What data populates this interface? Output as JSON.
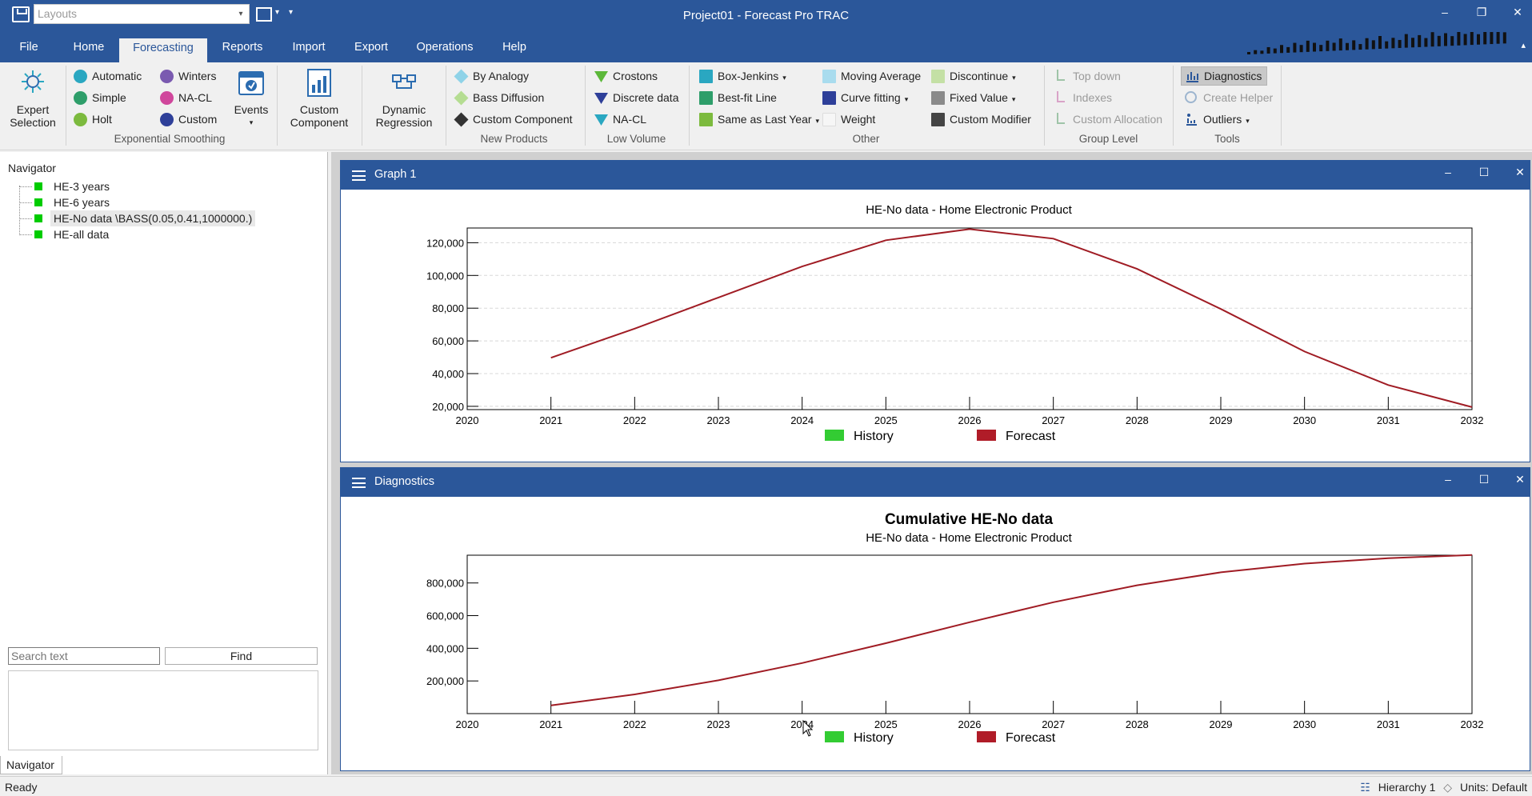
{
  "window": {
    "title": "Project01 - Forecast Pro TRAC",
    "layouts_placeholder": "Layouts"
  },
  "tabs": [
    "File",
    "Home",
    "Forecasting",
    "Reports",
    "Import",
    "Export",
    "Operations",
    "Help"
  ],
  "active_tab": "Forecasting",
  "ribbon": {
    "expert_selection": "Expert Selection",
    "exp_smoothing": {
      "label": "Exponential Smoothing",
      "items": [
        "Automatic",
        "Simple",
        "Holt",
        "Winters",
        "NA-CL",
        "Custom"
      ],
      "colors": [
        "#2aa7c1",
        "#2e9e6a",
        "#7cba3e",
        "#7a5ab0",
        "#d0479c",
        "#2e3f99"
      ]
    },
    "events": "Events",
    "custom_component": "Custom Component",
    "dynamic_regression": "Dynamic Regression",
    "new_products": {
      "label": "New Products",
      "items": [
        "By Analogy",
        "Bass Diffusion",
        "Custom Component"
      ]
    },
    "low_volume": {
      "label": "Low Volume",
      "items": [
        "Crostons",
        "Discrete data",
        "NA-CL"
      ]
    },
    "other": {
      "label": "Other",
      "col1": [
        "Box-Jenkins",
        "Best-fit Line",
        "Same as Last Year"
      ],
      "col2": [
        "Moving Average",
        "Curve fitting",
        "Weight"
      ],
      "col3": [
        "Discontinue",
        "Fixed Value",
        "Custom Modifier"
      ]
    },
    "group_level": {
      "label": "Group Level",
      "items": [
        "Top down",
        "Indexes",
        "Custom Allocation"
      ]
    },
    "tools": {
      "label": "Tools",
      "items": [
        "Diagnostics",
        "Create Helper",
        "Outliers"
      ]
    }
  },
  "navigator": {
    "title": "Navigator",
    "items": [
      "HE-3 years",
      "HE-6 years",
      "HE-No data \\BASS(0.05,0.41,1000000.)",
      "HE-all data"
    ],
    "search_placeholder": "Search text",
    "find_label": "Find",
    "tab_label": "Navigator"
  },
  "graph1": {
    "pane_title": "Graph 1",
    "legend": [
      "History",
      "Forecast"
    ]
  },
  "diagnostics": {
    "pane_title": "Diagnostics",
    "legend": [
      "History",
      "Forecast"
    ]
  },
  "chart_data": [
    {
      "type": "line",
      "title": "HE-No data - Home Electronic Product",
      "x": [
        2021,
        2022,
        2023,
        2024,
        2025,
        2026,
        2027,
        2028,
        2029,
        2030,
        2031,
        2032
      ],
      "x_ticks": [
        "2020",
        "2021",
        "2022",
        "2023",
        "2024",
        "2025",
        "2026",
        "2027",
        "2028",
        "2029",
        "2030",
        "2031",
        "2032"
      ],
      "y_ticks": [
        "20,000",
        "40,000",
        "60,000",
        "80,000",
        "100,000",
        "120,000"
      ],
      "xlim": [
        2020,
        2032
      ],
      "ylim": [
        18000,
        129000
      ],
      "grid": true,
      "legend_position": "bottom-center",
      "series": [
        {
          "name": "Forecast",
          "color": "#a01c24",
          "values": [
            49700,
            67500,
            86500,
            105500,
            121500,
            128300,
            122500,
            104000,
            79500,
            53500,
            33000,
            19500
          ]
        }
      ]
    },
    {
      "type": "line",
      "title": "Cumulative HE-No data",
      "subtitle": "HE-No data - Home Electronic Product",
      "x": [
        2021,
        2022,
        2023,
        2024,
        2025,
        2026,
        2027,
        2028,
        2029,
        2030,
        2031,
        2032
      ],
      "x_ticks": [
        "2020",
        "2021",
        "2022",
        "2023",
        "2024",
        "2025",
        "2026",
        "2027",
        "2028",
        "2029",
        "2030",
        "2031",
        "2032"
      ],
      "y_ticks": [
        "200,000",
        "400,000",
        "600,000",
        "800,000"
      ],
      "xlim": [
        2020,
        2032
      ],
      "ylim": [
        0,
        970000
      ],
      "grid": false,
      "legend_position": "bottom-center",
      "series": [
        {
          "name": "Forecast",
          "color": "#a01c24",
          "values": [
            50000,
            117500,
            204000,
            309500,
            431000,
            559300,
            681800,
            785800,
            865300,
            918800,
            951800,
            971300
          ]
        }
      ]
    }
  ],
  "status": {
    "ready": "Ready",
    "hierarchy": "Hierarchy 1",
    "units": "Units: Default"
  },
  "colors": {
    "brand": "#2b579a",
    "history": "#33cc33",
    "forecast": "#b01c28"
  }
}
